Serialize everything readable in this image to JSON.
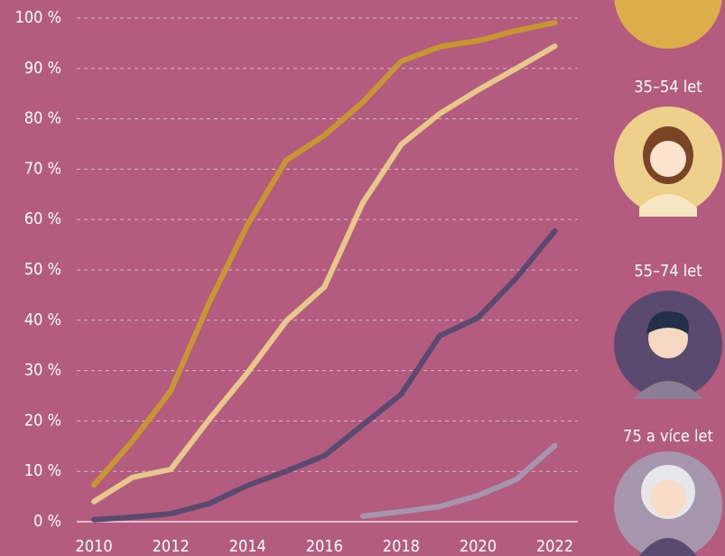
{
  "chart_data": {
    "type": "line",
    "x": [
      2010,
      2011,
      2012,
      2013,
      2014,
      2015,
      2016,
      2017,
      2018,
      2019,
      2020,
      2021,
      2022
    ],
    "series": [
      {
        "color": "#c8962f",
        "values": [
          7.3,
          16,
          26,
          43.5,
          59,
          71.7,
          76.7,
          83.3,
          91.4,
          94.3,
          95.5,
          97.5,
          99.1
        ]
      },
      {
        "name": "35–54 let",
        "color": "#e8c78a",
        "values": [
          4,
          8.8,
          10.4,
          20.3,
          29.6,
          39.8,
          46.6,
          63.3,
          74.9,
          81,
          85.7,
          90,
          94.4
        ]
      },
      {
        "name": "55–74 let",
        "color": "#5b4a70",
        "values": [
          0.4,
          0.9,
          1.6,
          3.6,
          7.2,
          10,
          13.1,
          19.2,
          25.3,
          36.9,
          40.5,
          48.4,
          57.7
        ]
      },
      {
        "name": "75 a více let",
        "color": "#a595ad",
        "values": [
          null,
          null,
          null,
          null,
          null,
          null,
          null,
          1.1,
          2,
          3,
          5.2,
          8.4,
          15.1
        ]
      }
    ],
    "xlim": [
      2009.55,
      2022.6
    ],
    "xticks": [
      2010,
      2012,
      2014,
      2016,
      2018,
      2020,
      2022
    ],
    "ylim": [
      0,
      100
    ],
    "yticks": [
      {
        "value": 0,
        "label": "0 %"
      },
      {
        "value": 10,
        "label": "10 %"
      },
      {
        "value": 20,
        "label": "20 %"
      },
      {
        "value": 30,
        "label": "30 %"
      },
      {
        "value": 40,
        "label": "40 %"
      },
      {
        "value": 50,
        "label": "50 %"
      },
      {
        "value": 60,
        "label": "60 %"
      },
      {
        "value": 70,
        "label": "70 %"
      },
      {
        "value": 80,
        "label": "80 %"
      },
      {
        "value": 90,
        "label": "90 %"
      },
      {
        "value": 100,
        "label": "100 %"
      }
    ],
    "grid": true
  }
}
